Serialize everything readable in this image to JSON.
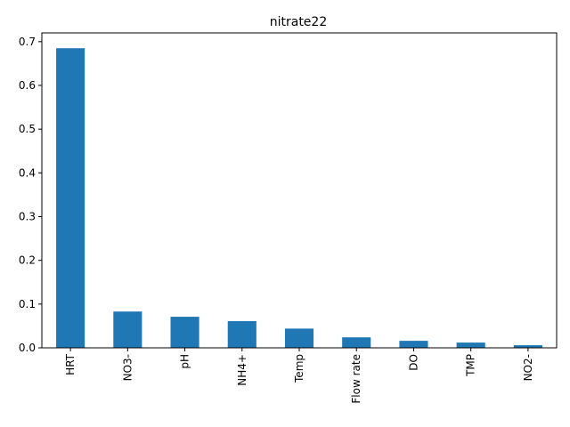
{
  "chart_data": {
    "type": "bar",
    "title": "nitrate22",
    "xlabel": "",
    "ylabel": "",
    "categories": [
      "HRT",
      "NO3-",
      "pH",
      "NH4+",
      "Temp",
      "Flow rate",
      "DO",
      "TMP",
      "NO2-"
    ],
    "values": [
      0.685,
      0.083,
      0.071,
      0.061,
      0.044,
      0.024,
      0.016,
      0.012,
      0.006
    ],
    "ylim": [
      0,
      0.72
    ],
    "yticks": [
      "0.0",
      "0.1",
      "0.2",
      "0.3",
      "0.4",
      "0.5",
      "0.6",
      "0.7"
    ],
    "grid": false,
    "legend": "none",
    "bar_color": "#1f77b4"
  }
}
